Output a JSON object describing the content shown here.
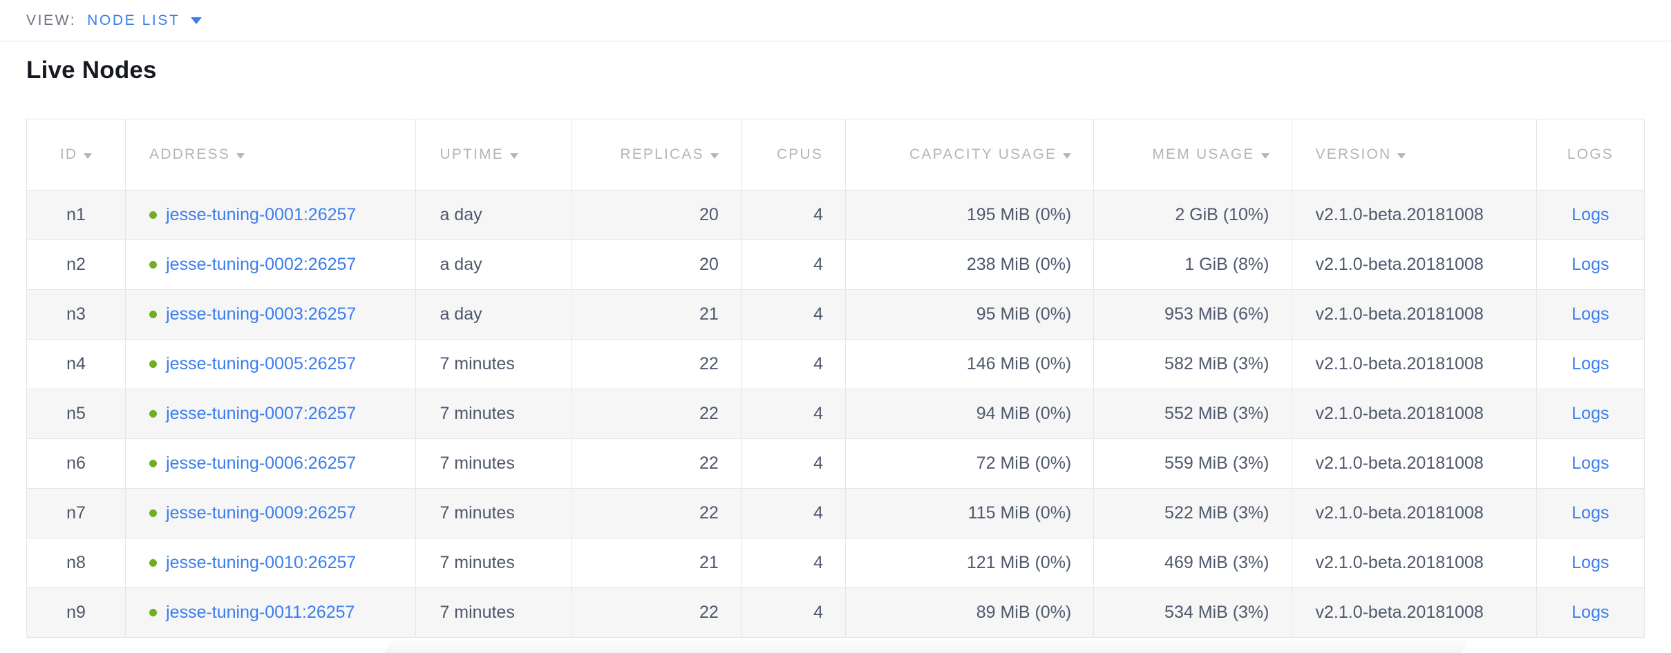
{
  "view_bar": {
    "label": "VIEW:",
    "selected_view": "NODE LIST"
  },
  "page": {
    "title": "Live Nodes"
  },
  "table": {
    "columns": [
      {
        "key": "id",
        "label": "ID",
        "sortable": true
      },
      {
        "key": "address",
        "label": "ADDRESS",
        "sortable": true
      },
      {
        "key": "uptime",
        "label": "UPTIME",
        "sortable": true
      },
      {
        "key": "replicas",
        "label": "REPLICAS",
        "sortable": true
      },
      {
        "key": "cpus",
        "label": "CPUS",
        "sortable": false
      },
      {
        "key": "capacity",
        "label": "CAPACITY USAGE",
        "sortable": true
      },
      {
        "key": "mem",
        "label": "MEM USAGE",
        "sortable": true
      },
      {
        "key": "version",
        "label": "VERSION",
        "sortable": true
      },
      {
        "key": "logs",
        "label": "LOGS",
        "sortable": false
      }
    ],
    "rows": [
      {
        "id": "n1",
        "status": "healthy",
        "address": "jesse-tuning-0001:26257",
        "uptime": "a day",
        "replicas": "20",
        "cpus": "4",
        "capacity": "195 MiB (0%)",
        "mem": "2 GiB (10%)",
        "version": "v2.1.0-beta.20181008",
        "logs": "Logs"
      },
      {
        "id": "n2",
        "status": "healthy",
        "address": "jesse-tuning-0002:26257",
        "uptime": "a day",
        "replicas": "20",
        "cpus": "4",
        "capacity": "238 MiB (0%)",
        "mem": "1 GiB (8%)",
        "version": "v2.1.0-beta.20181008",
        "logs": "Logs"
      },
      {
        "id": "n3",
        "status": "healthy",
        "address": "jesse-tuning-0003:26257",
        "uptime": "a day",
        "replicas": "21",
        "cpus": "4",
        "capacity": "95 MiB (0%)",
        "mem": "953 MiB (6%)",
        "version": "v2.1.0-beta.20181008",
        "logs": "Logs"
      },
      {
        "id": "n4",
        "status": "healthy",
        "address": "jesse-tuning-0005:26257",
        "uptime": "7 minutes",
        "replicas": "22",
        "cpus": "4",
        "capacity": "146 MiB (0%)",
        "mem": "582 MiB (3%)",
        "version": "v2.1.0-beta.20181008",
        "logs": "Logs"
      },
      {
        "id": "n5",
        "status": "healthy",
        "address": "jesse-tuning-0007:26257",
        "uptime": "7 minutes",
        "replicas": "22",
        "cpus": "4",
        "capacity": "94 MiB (0%)",
        "mem": "552 MiB (3%)",
        "version": "v2.1.0-beta.20181008",
        "logs": "Logs"
      },
      {
        "id": "n6",
        "status": "healthy",
        "address": "jesse-tuning-0006:26257",
        "uptime": "7 minutes",
        "replicas": "22",
        "cpus": "4",
        "capacity": "72 MiB (0%)",
        "mem": "559 MiB (3%)",
        "version": "v2.1.0-beta.20181008",
        "logs": "Logs"
      },
      {
        "id": "n7",
        "status": "healthy",
        "address": "jesse-tuning-0009:26257",
        "uptime": "7 minutes",
        "replicas": "22",
        "cpus": "4",
        "capacity": "115 MiB (0%)",
        "mem": "522 MiB (3%)",
        "version": "v2.1.0-beta.20181008",
        "logs": "Logs"
      },
      {
        "id": "n8",
        "status": "healthy",
        "address": "jesse-tuning-0010:26257",
        "uptime": "7 minutes",
        "replicas": "21",
        "cpus": "4",
        "capacity": "121 MiB (0%)",
        "mem": "469 MiB (3%)",
        "version": "v2.1.0-beta.20181008",
        "logs": "Logs"
      },
      {
        "id": "n9",
        "status": "healthy",
        "address": "jesse-tuning-0011:26257",
        "uptime": "7 minutes",
        "replicas": "22",
        "cpus": "4",
        "capacity": "89 MiB (0%)",
        "mem": "534 MiB (3%)",
        "version": "v2.1.0-beta.20181008",
        "logs": "Logs"
      }
    ]
  },
  "colors": {
    "accent_blue": "#3a7ded",
    "healthy_green": "#71ad22",
    "header_gray": "#b3b5ba",
    "cell_text": "#4e586c",
    "alt_row_bg": "#f6f6f7",
    "border": "#e5e5e7"
  }
}
